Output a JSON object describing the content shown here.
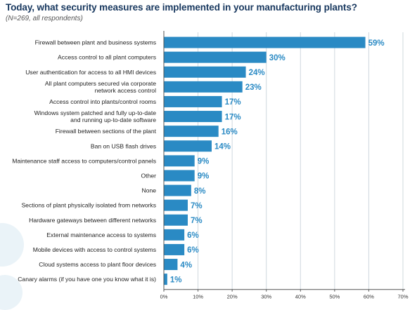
{
  "title": "Today, what security measures are implemented in your manufacturing plants?",
  "subtitle": "(N=269, all respondents)",
  "colors": {
    "bar": "#2a8ac4",
    "value_text": "#2a8ac4",
    "title": "#17375e",
    "grid": "#cfd8de"
  },
  "chart_data": {
    "type": "bar",
    "orientation": "horizontal",
    "title": "Today, what security measures are implemented in your manufacturing plants?",
    "subtitle": "(N=269, all respondents)",
    "categories": [
      [
        "Firewall between plant and business systems"
      ],
      [
        "Access control to all plant computers"
      ],
      [
        "User authentication for access to all HMI devices"
      ],
      [
        "All plant computers secured via corporate",
        "network access control"
      ],
      [
        "Access control into plants/control rooms"
      ],
      [
        "Windows system patched and fully up-to-date",
        "and running up-to-date software"
      ],
      [
        "Firewall between sections of the plant"
      ],
      [
        "Ban on USB flash drives"
      ],
      [
        "Maintenance staff access to computers/control panels"
      ],
      [
        "Other"
      ],
      [
        "None"
      ],
      [
        "Sections of plant physically isolated from networks"
      ],
      [
        "Hardware gateways between different networks"
      ],
      [
        "External maintenance access to systems"
      ],
      [
        "Mobile devices with access to control systems"
      ],
      [
        "Cloud systems access to plant floor devices"
      ],
      [
        "Canary alarms (if you have one you know what it is)"
      ]
    ],
    "values": [
      59,
      30,
      24,
      23,
      17,
      17,
      16,
      14,
      9,
      9,
      8,
      7,
      7,
      6,
      6,
      4,
      1
    ],
    "value_labels": [
      "59%",
      "30%",
      "24%",
      "23%",
      "17%",
      "17%",
      "16%",
      "14%",
      "9%",
      "9%",
      "8%",
      "7%",
      "7%",
      "6%",
      "6%",
      "4%",
      "1%"
    ],
    "xlim": [
      0,
      70
    ],
    "xticks": [
      0,
      10,
      20,
      30,
      40,
      50,
      60,
      70
    ],
    "xtick_labels": [
      "0%",
      "10%",
      "20%",
      "30%",
      "40%",
      "50%",
      "60%",
      "70%"
    ],
    "xlabel": "",
    "ylabel": "",
    "grid": true,
    "legend": "none"
  }
}
